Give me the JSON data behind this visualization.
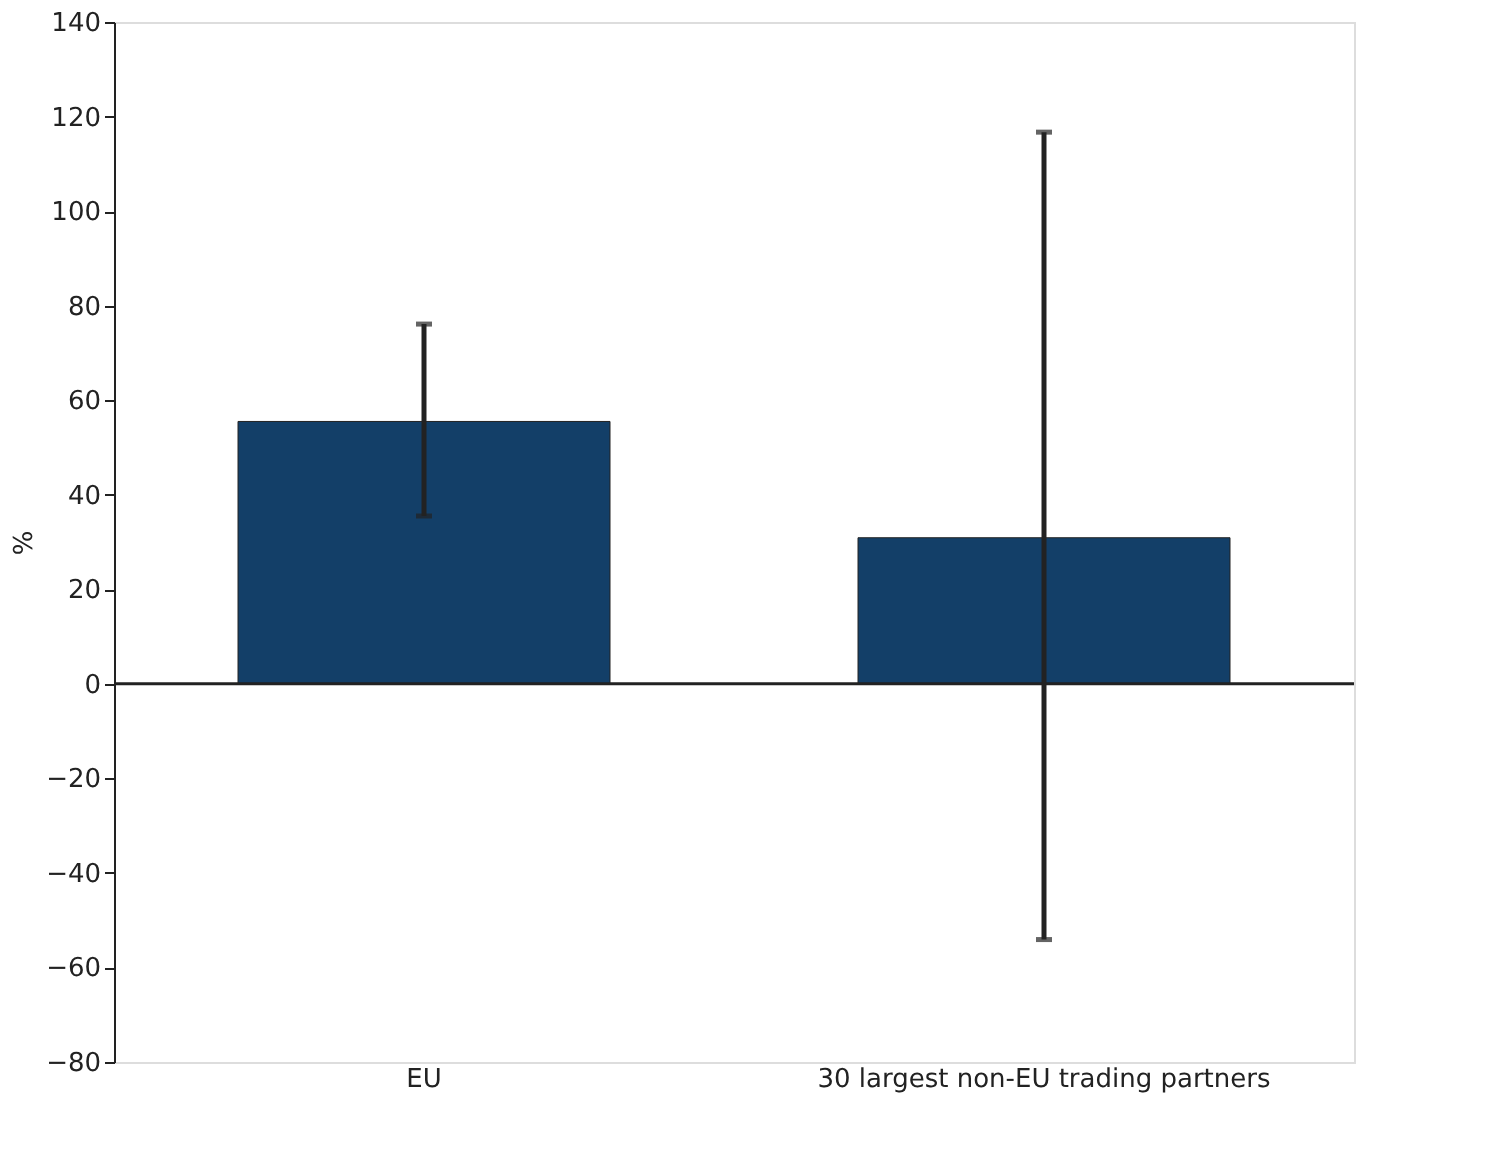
{
  "chart_data": {
    "type": "bar",
    "ylabel": "%",
    "categories": [
      "EU",
      "30 largest non-EU trading partners"
    ],
    "values": [
      55.5,
      30.9
    ],
    "errors": [
      [
        35.5,
        76.1
      ],
      [
        -54.1,
        116.7
      ]
    ],
    "color": "#133f68",
    "ylim": [
      -80,
      140
    ],
    "yticks": [
      -80,
      -60,
      -40,
      -20,
      0,
      20,
      40,
      60,
      80,
      100,
      120,
      140
    ],
    "ref_lines": [
      {
        "axis": "y",
        "value": 0,
        "color": "#222222"
      }
    ],
    "grid": false
  }
}
